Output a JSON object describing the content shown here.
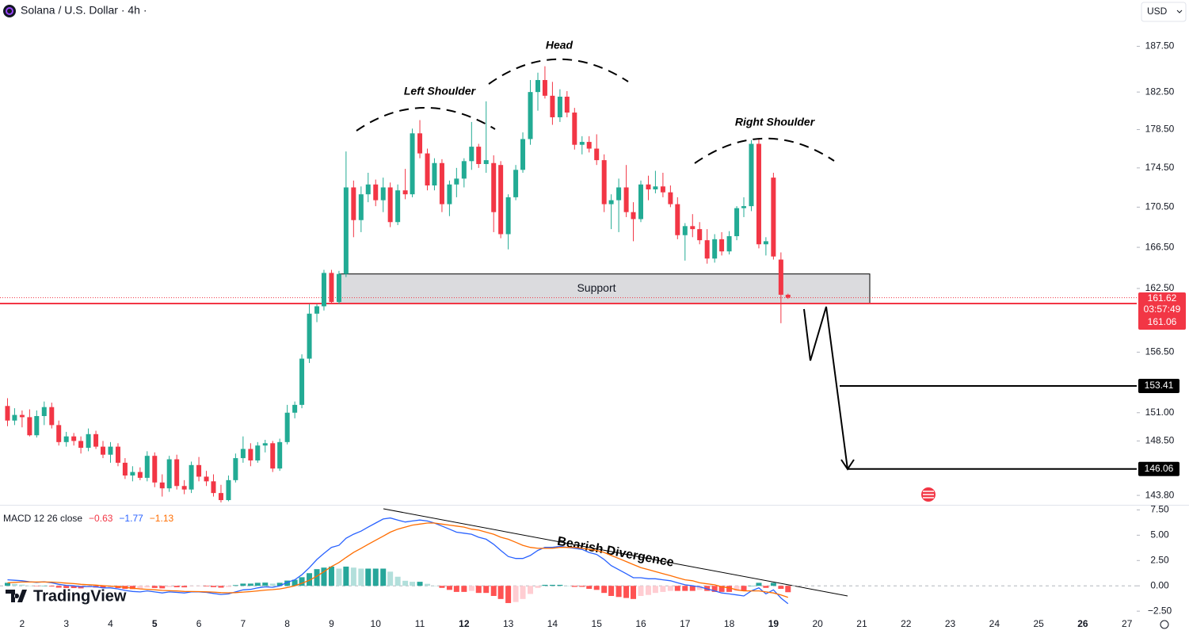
{
  "header": {
    "symbol": "Solana / U.S. Dollar · 4h ·",
    "currency": "USD"
  },
  "branding": "TradingView",
  "chart_data": [
    {
      "type": "candlestick",
      "scale": "log",
      "xlim": [
        1.5,
        27.22
      ],
      "xticks": [
        2,
        3,
        4,
        5,
        6,
        7,
        8,
        9,
        10,
        11,
        12,
        13,
        14,
        15,
        16,
        17,
        18,
        19,
        20,
        21,
        22,
        23,
        24,
        25,
        26,
        27
      ],
      "bold_xticks": [
        5,
        12,
        19,
        26
      ],
      "ylim": [
        143.0,
        192.7
      ],
      "yticks": [
        {
          "value": 187.5,
          "label": "187.50"
        },
        {
          "value": 182.5,
          "label": "182.50"
        },
        {
          "value": 178.5,
          "label": "178.50"
        },
        {
          "value": 174.5,
          "label": "174.50"
        },
        {
          "value": 170.5,
          "label": "170.50"
        },
        {
          "value": 166.5,
          "label": "166.50"
        },
        {
          "value": 162.5,
          "label": "162.50"
        },
        {
          "value": 156.5,
          "label": "156.50"
        },
        {
          "value": 151,
          "label": "151.00"
        },
        {
          "value": 148.5,
          "label": "148.50"
        },
        {
          "value": 143.8,
          "label": "143.80"
        }
      ],
      "up_color": "#22ab94",
      "down_color": "#f23645",
      "x": [
        1.67,
        1.83,
        2,
        2.17,
        2.33,
        2.5,
        2.67,
        2.83,
        3,
        3.17,
        3.33,
        3.5,
        3.67,
        3.83,
        4,
        4.17,
        4.33,
        4.5,
        4.67,
        4.83,
        5,
        5.17,
        5.33,
        5.5,
        5.67,
        5.83,
        6,
        6.17,
        6.33,
        6.5,
        6.67,
        6.83,
        7,
        7.17,
        7.33,
        7.5,
        7.67,
        7.83,
        8,
        8.17,
        8.33,
        8.5,
        8.67,
        8.83,
        9,
        9.17,
        9.33,
        9.5,
        9.67,
        9.83,
        10,
        10.17,
        10.33,
        10.5,
        10.67,
        10.83,
        11,
        11.17,
        11.33,
        11.5,
        11.67,
        11.83,
        12,
        12.17,
        12.33,
        12.5,
        12.67,
        12.83,
        13,
        13.17,
        13.33,
        13.5,
        13.67,
        13.83,
        14,
        14.17,
        14.33,
        14.5,
        14.67,
        14.83,
        15,
        15.17,
        15.33,
        15.5,
        15.67,
        15.83,
        16,
        16.17,
        16.33,
        16.5,
        16.67,
        16.83,
        17,
        17.17,
        17.33,
        17.5,
        17.67,
        17.83,
        18,
        18.17,
        18.33,
        18.5,
        18.67,
        18.83,
        19,
        19.17,
        19.33
      ],
      "open": [
        151.6,
        150.3,
        150.8,
        150.6,
        149.0,
        150.7,
        151.5,
        149.9,
        148.4,
        148.9,
        148.5,
        147.9,
        149.1,
        148.0,
        147.3,
        148.0,
        146.6,
        145.5,
        145.8,
        145.3,
        147.2,
        144.9,
        144.4,
        146.9,
        144.6,
        144.3,
        146.4,
        145.4,
        145.0,
        144.0,
        143.4,
        145.1,
        147.0,
        147.8,
        146.8,
        148.1,
        148.3,
        146.1,
        148.4,
        151.0,
        151.7,
        155.9,
        160.1,
        160.8,
        164.0,
        161.2,
        163.9,
        172.5,
        169.2,
        171.8,
        172.8,
        171.2,
        172.5,
        169.0,
        172.2,
        171.8,
        178.1,
        176.0,
        172.7,
        175.0,
        170.8,
        172.8,
        173.4,
        175.2,
        176.7,
        174.9,
        175.0,
        174.8,
        167.8,
        171.5,
        174.3,
        177.5,
        182.5,
        183.8,
        182.1,
        179.8,
        182.0,
        180.3,
        176.9,
        177.2,
        176.5,
        175.3,
        170.8,
        171.2,
        172.5,
        170.0,
        169.3,
        172.8,
        172.3,
        172.6,
        172.0,
        170.8,
        167.7,
        168.6,
        168.3,
        167.2,
        165.4,
        167.3,
        166.1,
        167.6,
        170.4,
        170.6,
        177.0,
        166.8,
        173.5,
        165.3,
        161.9
      ],
      "high": [
        152.3,
        151.4,
        151.2,
        151.3,
        151.2,
        152.0,
        151.9,
        150.3,
        149.3,
        149.2,
        148.9,
        149.6,
        149.4,
        148.5,
        148.4,
        148.3,
        147.0,
        146.3,
        146.2,
        147.6,
        147.5,
        145.6,
        147.2,
        147.3,
        145.1,
        146.7,
        147.1,
        145.9,
        145.6,
        144.7,
        145.5,
        147.4,
        148.9,
        148.3,
        148.4,
        148.6,
        148.5,
        148.7,
        151.7,
        152.0,
        156.3,
        161.0,
        161.0,
        164.3,
        164.3,
        164.2,
        176.2,
        173.2,
        172.6,
        174.0,
        173.3,
        173.5,
        173.0,
        172.8,
        174.4,
        178.6,
        179.5,
        176.5,
        175.5,
        175.4,
        173.2,
        174.5,
        175.5,
        179.3,
        177.0,
        181.5,
        175.8,
        175.2,
        171.8,
        174.8,
        178.2,
        183.8,
        184.6,
        185.3,
        183.6,
        182.8,
        182.6,
        180.8,
        177.8,
        177.8,
        178.0,
        175.9,
        171.8,
        173.4,
        174.8,
        171.0,
        173.2,
        173.7,
        174.2,
        174.0,
        172.7,
        171.5,
        168.9,
        169.8,
        169.0,
        168.3,
        167.8,
        168.0,
        168.1,
        170.6,
        171.5,
        177.4,
        177.6,
        167.5,
        174.0,
        166.0,
        162.0
      ],
      "low": [
        149.8,
        149.9,
        149.7,
        148.9,
        148.8,
        149.9,
        149.6,
        148.1,
        148.0,
        148.1,
        147.4,
        147.6,
        147.8,
        147.0,
        146.6,
        146.3,
        145.2,
        145.0,
        145.1,
        145.0,
        144.5,
        143.7,
        144.1,
        144.3,
        143.9,
        144.0,
        145.0,
        144.6,
        143.7,
        143.2,
        143.3,
        144.9,
        146.6,
        146.3,
        146.6,
        147.5,
        145.8,
        145.9,
        148.2,
        150.5,
        151.4,
        155.5,
        159.3,
        160.4,
        161.0,
        161.0,
        163.6,
        167.5,
        168.0,
        171.0,
        170.6,
        170.0,
        168.5,
        168.7,
        171.3,
        171.5,
        175.5,
        172.2,
        172.2,
        170.0,
        169.6,
        171.5,
        172.5,
        174.3,
        174.5,
        174.0,
        168.0,
        167.4,
        166.3,
        171.2,
        174.0,
        176.9,
        180.5,
        181.8,
        179.0,
        179.3,
        179.8,
        176.4,
        175.9,
        176.1,
        174.8,
        170.0,
        168.3,
        168.0,
        169.5,
        167.1,
        169.0,
        171.2,
        171.9,
        171.5,
        170.5,
        167.3,
        165.2,
        167.5,
        166.8,
        164.9,
        165.0,
        165.7,
        165.8,
        167.2,
        169.5,
        170.1,
        166.4,
        165.7,
        165.3,
        159.2,
        161.5
      ],
      "close": [
        150.3,
        150.8,
        150.6,
        149.0,
        150.7,
        151.5,
        149.9,
        148.4,
        148.9,
        148.5,
        147.9,
        149.1,
        148.0,
        147.3,
        148.0,
        146.6,
        145.5,
        145.8,
        145.3,
        147.2,
        144.9,
        144.4,
        146.9,
        144.6,
        144.3,
        146.4,
        145.4,
        145.0,
        144.0,
        143.4,
        145.1,
        147.0,
        147.8,
        146.8,
        148.1,
        148.3,
        146.1,
        148.4,
        151.0,
        151.7,
        155.9,
        160.1,
        160.8,
        164.0,
        161.2,
        163.9,
        172.5,
        169.2,
        171.8,
        172.8,
        171.2,
        172.5,
        169.0,
        172.2,
        171.8,
        178.1,
        176.0,
        172.7,
        175.0,
        170.8,
        172.8,
        173.4,
        175.2,
        176.7,
        174.9,
        175.3,
        170.0,
        167.8,
        171.5,
        174.3,
        177.5,
        182.5,
        183.8,
        182.1,
        179.8,
        182.0,
        180.3,
        176.9,
        177.2,
        176.5,
        175.3,
        170.8,
        171.2,
        172.5,
        170.0,
        169.3,
        172.8,
        172.3,
        172.6,
        172.0,
        170.8,
        167.7,
        168.6,
        168.3,
        167.2,
        165.4,
        167.3,
        166.1,
        167.6,
        170.4,
        170.6,
        177.0,
        166.8,
        167.1,
        165.6,
        161.9,
        161.62
      ],
      "annotations": {
        "head": "Head",
        "left_shoulder": "Left Shoulder",
        "right_shoulder": "Right Shoulder",
        "support": "Support"
      },
      "support_zone": [
        161.1,
        163.9
      ],
      "last_price": 161.62,
      "countdown": "03:57:49",
      "level": 161.06,
      "targets": [
        153.41,
        146.06
      ]
    },
    {
      "type": "macd",
      "title": "MACD 12 26 close",
      "ylim": [
        -2.8,
        8
      ],
      "yticks": [
        {
          "value": 7.5,
          "label": "7.50"
        },
        {
          "value": 5,
          "label": "5.00"
        },
        {
          "value": 2.5,
          "label": "2.50"
        },
        {
          "value": 0,
          "label": "0.00"
        },
        {
          "value": -2.5,
          "label": "−2.50"
        }
      ],
      "annotation": "Bearish Divergence",
      "legend": [
        {
          "value": -0.63,
          "label": "−0.63",
          "color": "#f23645"
        },
        {
          "value": -1.77,
          "label": "−1.77",
          "color": "#2962ff"
        },
        {
          "value": -1.13,
          "label": "−1.13",
          "color": "#ff6d00"
        }
      ],
      "hist_colors": [
        "#26a69a",
        "#b2dfdb",
        "#ff5252",
        "#ffcdd2"
      ],
      "histogram": [
        0.3,
        0.2,
        0.12,
        0.02,
        -0.03,
        0.02,
        -0.07,
        -0.18,
        -0.22,
        -0.22,
        -0.25,
        -0.16,
        -0.17,
        -0.22,
        -0.17,
        -0.22,
        -0.3,
        -0.32,
        -0.3,
        -0.16,
        -0.21,
        -0.25,
        -0.12,
        -0.14,
        -0.15,
        -0.04,
        -0.03,
        -0.06,
        -0.13,
        -0.18,
        -0.11,
        0.07,
        0.22,
        0.22,
        0.3,
        0.32,
        0.22,
        0.3,
        0.52,
        0.6,
        0.85,
        1.25,
        1.65,
        1.8,
        1.9,
        1.7,
        1.9,
        1.8,
        1.7,
        1.7,
        1.7,
        1.7,
        1.4,
        0.9,
        0.5,
        0.4,
        0.4,
        0.2,
        0,
        -0.2,
        -0.4,
        -0.6,
        -0.6,
        -0.5,
        -0.7,
        -0.7,
        -1.0,
        -1.3,
        -1.7,
        -1.6,
        -1.3,
        -0.8,
        -0.2,
        0.1,
        0.1,
        0.1,
        0,
        -0.1,
        -0.1,
        -0.3,
        -0.4,
        -0.7,
        -1.0,
        -1.1,
        -1.2,
        -1.3,
        -1.0,
        -0.9,
        -0.7,
        -0.6,
        -0.5,
        -0.5,
        -0.5,
        -0.5,
        -0.4,
        -0.5,
        -0.6,
        -0.6,
        -0.6,
        -0.5,
        -0.5,
        0,
        0.3,
        -0.2,
        0.3,
        -0.3,
        -0.63
      ],
      "series": [
        {
          "color": "#2962ff",
          "values": [
            0.6,
            0.55,
            0.5,
            0.4,
            0.35,
            0.4,
            0.3,
            0.15,
            0.05,
            0,
            -0.1,
            -0.05,
            -0.1,
            -0.2,
            -0.2,
            -0.3,
            -0.45,
            -0.55,
            -0.6,
            -0.5,
            -0.6,
            -0.7,
            -0.6,
            -0.65,
            -0.7,
            -0.6,
            -0.6,
            -0.65,
            -0.75,
            -0.85,
            -0.8,
            -0.6,
            -0.4,
            -0.35,
            -0.2,
            -0.1,
            -0.15,
            0,
            0.35,
            0.6,
            1.1,
            1.8,
            2.6,
            3.2,
            3.8,
            4.0,
            4.7,
            5.1,
            5.4,
            5.8,
            6.2,
            6.6,
            6.7,
            6.5,
            6.3,
            6.4,
            6.5,
            6.4,
            6.2,
            5.9,
            5.6,
            5.3,
            5.2,
            5.1,
            4.8,
            4.6,
            4.1,
            3.5,
            2.9,
            2.7,
            2.7,
            3.0,
            3.5,
            3.8,
            3.8,
            3.9,
            3.8,
            3.7,
            3.6,
            3.3,
            3.1,
            2.6,
            2.0,
            1.6,
            1.2,
            0.8,
            0.8,
            0.7,
            0.7,
            0.6,
            0.5,
            0.3,
            0.1,
            0,
            -0.1,
            -0.3,
            -0.5,
            -0.7,
            -0.8,
            -0.9,
            -1.0,
            -0.5,
            -0.2,
            -0.8,
            -0.4,
            -1.2,
            -1.77
          ]
        },
        {
          "color": "#ff6d00",
          "values": [
            0.3,
            0.35,
            0.38,
            0.38,
            0.38,
            0.38,
            0.37,
            0.33,
            0.27,
            0.22,
            0.15,
            0.11,
            0.07,
            0.02,
            -0.03,
            -0.08,
            -0.15,
            -0.23,
            -0.3,
            -0.34,
            -0.39,
            -0.45,
            -0.48,
            -0.51,
            -0.55,
            -0.56,
            -0.57,
            -0.59,
            -0.62,
            -0.67,
            -0.69,
            -0.67,
            -0.62,
            -0.57,
            -0.5,
            -0.42,
            -0.37,
            -0.3,
            -0.17,
            0,
            0.25,
            0.55,
            0.95,
            1.4,
            1.9,
            2.3,
            2.8,
            3.3,
            3.7,
            4.1,
            4.5,
            4.9,
            5.3,
            5.6,
            5.8,
            6.0,
            6.1,
            6.2,
            6.2,
            6.1,
            6.0,
            5.9,
            5.8,
            5.6,
            5.5,
            5.3,
            5.1,
            4.8,
            4.6,
            4.3,
            4.0,
            3.8,
            3.7,
            3.7,
            3.7,
            3.8,
            3.8,
            3.8,
            3.7,
            3.6,
            3.5,
            3.3,
            3.0,
            2.7,
            2.4,
            2.1,
            1.8,
            1.6,
            1.4,
            1.2,
            1.0,
            0.8,
            0.6,
            0.5,
            0.3,
            0.2,
            0.1,
            -0.1,
            -0.2,
            -0.4,
            -0.5,
            -0.5,
            -0.5,
            -0.6,
            -0.7,
            -0.9,
            -1.13
          ]
        }
      ]
    }
  ]
}
